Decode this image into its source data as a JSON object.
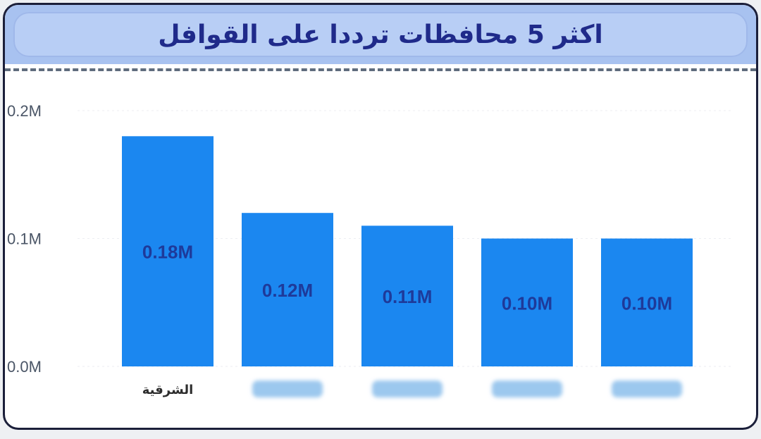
{
  "chart_data": {
    "type": "bar",
    "title": "اكثر 5 محافظات ترددا على القوافل",
    "categories": [
      "الشرقية",
      "",
      "",
      "",
      ""
    ],
    "values": [
      0.18,
      0.12,
      0.11,
      0.1,
      0.1
    ],
    "data_labels": [
      "0.18M",
      "0.12M",
      "0.11M",
      "0.10M",
      "0.10M"
    ],
    "value_unit": "M",
    "yticks": [
      "0.0M",
      "0.1M",
      "0.2M"
    ],
    "ylim": [
      0,
      0.2
    ],
    "bar_color": "#1b87f0",
    "grid": true,
    "legend": "none",
    "categories_blurred": [
      false,
      true,
      true,
      true,
      true
    ]
  }
}
